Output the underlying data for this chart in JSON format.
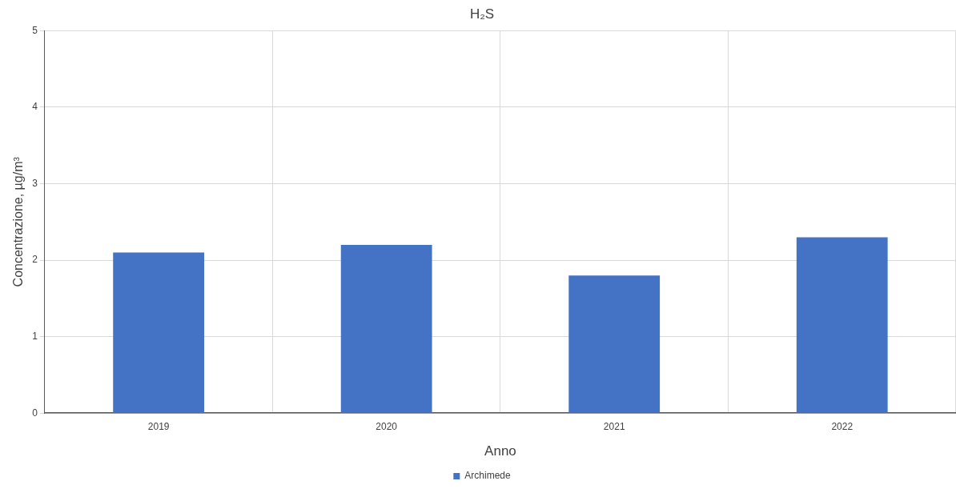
{
  "chart_data": {
    "type": "bar",
    "title": "H₂S",
    "xlabel": "Anno",
    "ylabel": "Concentrazione, µg/m³",
    "categories": [
      "2019",
      "2020",
      "2021",
      "2022"
    ],
    "series": [
      {
        "name": "Archimede",
        "color": "#4472c4",
        "values": [
          2.1,
          2.2,
          1.8,
          2.3
        ]
      }
    ],
    "ylim": [
      0,
      5
    ],
    "yticks": [
      0,
      1,
      2,
      3,
      4,
      5
    ],
    "grid": true,
    "legend": "bottom"
  }
}
